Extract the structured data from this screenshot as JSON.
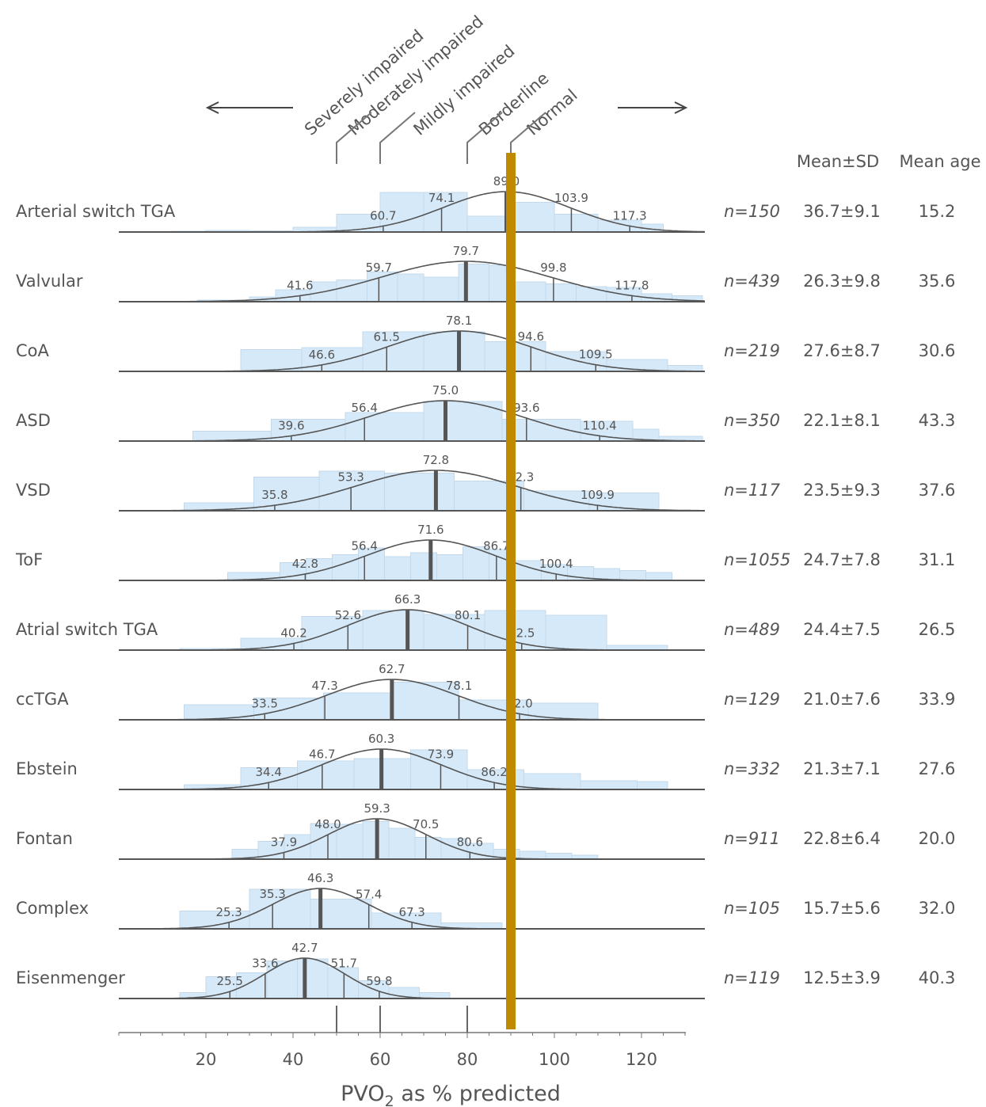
{
  "chart_data": {
    "type": "bar",
    "subtype": "histogram-with-normal-fit",
    "xlabel": "PVO",
    "xlabel_sub": "2",
    "xlabel_rest": " as % predicted",
    "x_ticks": [
      "20",
      "40",
      "60",
      "80",
      "100",
      "120"
    ],
    "xlim": [
      0,
      130
    ],
    "category_labels": [
      "Severely impaired",
      "Moderately impaired",
      "Mildly impaired",
      "Borderline",
      "Normal"
    ],
    "category_thresholds": [
      50,
      60,
      80,
      90
    ],
    "reference_line": {
      "x": 90,
      "color": "#c08a00"
    },
    "bar_color": "#d6e9f8",
    "curve_color": "#555555",
    "column_headers": {
      "mean_sd": "Mean±SD",
      "mean_age": "Mean age"
    },
    "series": [
      {
        "name": "Arterial switch TGA",
        "n": "n=150",
        "mean_sd": "36.7±9.1",
        "mean_age": "15.2",
        "mean": 89.0,
        "sd": 14.5,
        "markers": [
          {
            "v": 60.7,
            "t": "60.7"
          },
          {
            "v": 74.1,
            "t": "74.1"
          },
          {
            "v": 89.0,
            "t": "89.0",
            "mean": true
          },
          {
            "v": 103.9,
            "t": "103.9"
          },
          {
            "v": 117.3,
            "t": "117.3"
          }
        ],
        "bins": [
          [
            12,
            20,
            0.02
          ],
          [
            20,
            30,
            0.04
          ],
          [
            30,
            40,
            0.03
          ],
          [
            40,
            50,
            0.12
          ],
          [
            50,
            60,
            0.45
          ],
          [
            60,
            70,
            1.0
          ],
          [
            70,
            80,
            1.0
          ],
          [
            80,
            90,
            0.4
          ],
          [
            90,
            100,
            0.75
          ],
          [
            100,
            110,
            0.45
          ],
          [
            110,
            120,
            0.3
          ],
          [
            120,
            125,
            0.2
          ]
        ]
      },
      {
        "name": "Valvular",
        "n": "n=439",
        "mean_sd": "26.3±9.8",
        "mean_age": "35.6",
        "mean": 79.7,
        "sd": 19.5,
        "markers": [
          {
            "v": 41.6,
            "t": "41.6"
          },
          {
            "v": 59.7,
            "t": "59.7"
          },
          {
            "v": 79.7,
            "t": "79.7",
            "mean": true
          },
          {
            "v": 99.8,
            "t": "99.8"
          },
          {
            "v": 117.8,
            "t": "117.8"
          }
        ],
        "bins": [
          [
            18,
            30,
            0.04
          ],
          [
            30,
            36,
            0.12
          ],
          [
            36,
            44,
            0.3
          ],
          [
            44,
            50,
            0.5
          ],
          [
            50,
            57,
            0.55
          ],
          [
            57,
            64,
            0.75
          ],
          [
            64,
            70,
            0.7
          ],
          [
            70,
            78,
            0.62
          ],
          [
            78,
            85,
            0.95
          ],
          [
            85,
            91,
            0.92
          ],
          [
            91,
            98,
            0.5
          ],
          [
            98,
            105,
            0.45
          ],
          [
            105,
            112,
            0.38
          ],
          [
            112,
            120,
            0.36
          ],
          [
            120,
            127,
            0.2
          ],
          [
            127,
            134,
            0.15
          ]
        ]
      },
      {
        "name": "CoA",
        "n": "n=219",
        "mean_sd": "27.6±8.7",
        "mean_age": "30.6",
        "mean": 78.1,
        "sd": 16.5,
        "markers": [
          {
            "v": 46.6,
            "t": "46.6"
          },
          {
            "v": 61.5,
            "t": "61.5"
          },
          {
            "v": 78.1,
            "t": "78.1",
            "mean": true
          },
          {
            "v": 94.6,
            "t": "94.6"
          },
          {
            "v": 109.5,
            "t": "109.5"
          }
        ],
        "bins": [
          [
            28,
            42,
            0.55
          ],
          [
            42,
            56,
            0.6
          ],
          [
            56,
            70,
            1.0
          ],
          [
            70,
            84,
            1.0
          ],
          [
            84,
            98,
            0.75
          ],
          [
            98,
            112,
            0.5
          ],
          [
            112,
            126,
            0.3
          ],
          [
            126,
            134,
            0.15
          ]
        ]
      },
      {
        "name": "ASD",
        "n": "n=350",
        "mean_sd": "22.1±8.1",
        "mean_age": "43.3",
        "mean": 75.0,
        "sd": 17.5,
        "markers": [
          {
            "v": 39.6,
            "t": "39.6"
          },
          {
            "v": 56.4,
            "t": "56.4"
          },
          {
            "v": 75.0,
            "t": "75.0",
            "mean": true
          },
          {
            "v": 93.6,
            "t": "93.6"
          },
          {
            "v": 110.4,
            "t": "110.4"
          }
        ],
        "bins": [
          [
            17,
            35,
            0.25
          ],
          [
            35,
            52,
            0.55
          ],
          [
            52,
            70,
            0.72
          ],
          [
            70,
            88,
            1.0
          ],
          [
            88,
            106,
            0.55
          ],
          [
            106,
            118,
            0.5
          ],
          [
            118,
            124,
            0.3
          ],
          [
            124,
            134,
            0.12
          ]
        ]
      },
      {
        "name": "VSD",
        "n": "n=117",
        "mean_sd": "23.5±9.3",
        "mean_age": "37.6",
        "mean": 72.8,
        "sd": 18.5,
        "markers": [
          {
            "v": 35.8,
            "t": "35.8"
          },
          {
            "v": 53.3,
            "t": "53.3"
          },
          {
            "v": 72.8,
            "t": "72.8",
            "mean": true
          },
          {
            "v": 92.3,
            "t": "92.3"
          },
          {
            "v": 109.9,
            "t": "109.9"
          }
        ],
        "bins": [
          [
            15,
            31,
            0.2
          ],
          [
            31,
            46,
            0.85
          ],
          [
            46,
            61,
            1.0
          ],
          [
            61,
            77,
            0.95
          ],
          [
            77,
            93,
            0.75
          ],
          [
            93,
            108,
            0.5
          ],
          [
            108,
            124,
            0.45
          ]
        ]
      },
      {
        "name": "ToF",
        "n": "n=1055",
        "mean_sd": "24.7±7.8",
        "mean_age": "31.1",
        "mean": 71.6,
        "sd": 15.0,
        "markers": [
          {
            "v": 42.8,
            "t": "42.8"
          },
          {
            "v": 56.4,
            "t": "56.4"
          },
          {
            "v": 71.6,
            "t": "71.6",
            "mean": true
          },
          {
            "v": 86.7,
            "t": "86.7"
          },
          {
            "v": 100.4,
            "t": "100.4"
          }
        ],
        "bins": [
          [
            25,
            37,
            0.2
          ],
          [
            37,
            43,
            0.45
          ],
          [
            43,
            49,
            0.55
          ],
          [
            49,
            55,
            0.65
          ],
          [
            55,
            61,
            0.82
          ],
          [
            61,
            67,
            0.6
          ],
          [
            67,
            73,
            0.7
          ],
          [
            73,
            79,
            0.65
          ],
          [
            79,
            85,
            0.85
          ],
          [
            85,
            91,
            0.78
          ],
          [
            91,
            97,
            0.5
          ],
          [
            97,
            103,
            0.4
          ],
          [
            103,
            109,
            0.35
          ],
          [
            109,
            115,
            0.3
          ],
          [
            115,
            121,
            0.25
          ],
          [
            121,
            127,
            0.2
          ]
        ]
      },
      {
        "name": "Atrial switch TGA",
        "n": "n=489",
        "mean_sd": "24.4±7.5",
        "mean_age": "26.5",
        "mean": 66.3,
        "sd": 13.8,
        "markers": [
          {
            "v": 40.2,
            "t": "40.2"
          },
          {
            "v": 52.6,
            "t": "52.6"
          },
          {
            "v": 66.3,
            "t": "66.3",
            "mean": true
          },
          {
            "v": 80.1,
            "t": "80.1"
          },
          {
            "v": 92.5,
            "t": "92.5"
          }
        ],
        "bins": [
          [
            14,
            28,
            0.04
          ],
          [
            28,
            42,
            0.3
          ],
          [
            42,
            56,
            0.85
          ],
          [
            56,
            70,
            1.0
          ],
          [
            70,
            84,
            0.9
          ],
          [
            84,
            98,
            1.0
          ],
          [
            98,
            112,
            0.88
          ],
          [
            112,
            126,
            0.12
          ]
        ]
      },
      {
        "name": "ccTGA",
        "n": "n=129",
        "mean_sd": "21.0±7.6",
        "mean_age": "33.9",
        "mean": 62.7,
        "sd": 15.0,
        "markers": [
          {
            "v": 33.5,
            "t": "33.5"
          },
          {
            "v": 47.3,
            "t": "47.3"
          },
          {
            "v": 62.7,
            "t": "62.7",
            "mean": true
          },
          {
            "v": 78.1,
            "t": "78.1"
          },
          {
            "v": 92.0,
            "t": "92.0"
          }
        ],
        "bins": [
          [
            15,
            31,
            0.38
          ],
          [
            31,
            47,
            0.55
          ],
          [
            47,
            63,
            0.68
          ],
          [
            63,
            78,
            0.95
          ],
          [
            78,
            94,
            0.5
          ],
          [
            94,
            110,
            0.42
          ]
        ]
      },
      {
        "name": "Ebstein",
        "n": "n=332",
        "mean_sd": "21.3±7.1",
        "mean_age": "27.6",
        "mean": 60.3,
        "sd": 13.8,
        "markers": [
          {
            "v": 34.4,
            "t": "34.4"
          },
          {
            "v": 46.7,
            "t": "46.7"
          },
          {
            "v": 60.3,
            "t": "60.3",
            "mean": true
          },
          {
            "v": 73.9,
            "t": "73.9"
          },
          {
            "v": 86.2,
            "t": "86.2"
          }
        ],
        "bins": [
          [
            15,
            28,
            0.12
          ],
          [
            28,
            41,
            0.55
          ],
          [
            41,
            54,
            0.72
          ],
          [
            54,
            67,
            0.78
          ],
          [
            67,
            80,
            1.0
          ],
          [
            80,
            93,
            0.5
          ],
          [
            93,
            106,
            0.4
          ],
          [
            106,
            119,
            0.22
          ],
          [
            119,
            126,
            0.2
          ]
        ]
      },
      {
        "name": "Fontan",
        "n": "n=911",
        "mean_sd": "22.8±6.4",
        "mean_age": "20.0",
        "mean": 59.3,
        "sd": 11.3,
        "markers": [
          {
            "v": 37.9,
            "t": "37.9"
          },
          {
            "v": 48.0,
            "t": "48.0"
          },
          {
            "v": 59.3,
            "t": "59.3",
            "mean": true
          },
          {
            "v": 70.5,
            "t": "70.5"
          },
          {
            "v": 80.6,
            "t": "80.6"
          }
        ],
        "bins": [
          [
            26,
            32,
            0.25
          ],
          [
            32,
            38,
            0.45
          ],
          [
            38,
            44,
            0.62
          ],
          [
            44,
            50,
            0.9
          ],
          [
            50,
            56,
            0.88
          ],
          [
            56,
            62,
            0.95
          ],
          [
            62,
            68,
            0.78
          ],
          [
            68,
            74,
            0.55
          ],
          [
            74,
            80,
            0.52
          ],
          [
            80,
            86,
            0.4
          ],
          [
            86,
            92,
            0.25
          ],
          [
            92,
            98,
            0.2
          ],
          [
            98,
            104,
            0.15
          ],
          [
            104,
            110,
            0.1
          ]
        ]
      },
      {
        "name": "Complex",
        "n": "n=105",
        "mean_sd": "15.7±5.6",
        "mean_age": "32.0",
        "mean": 46.3,
        "sd": 11.0,
        "markers": [
          {
            "v": 25.3,
            "t": "25.3"
          },
          {
            "v": 35.3,
            "t": "35.3"
          },
          {
            "v": 46.3,
            "t": "46.3",
            "mean": true
          },
          {
            "v": 57.4,
            "t": "57.4"
          },
          {
            "v": 67.3,
            "t": "67.3"
          }
        ],
        "bins": [
          [
            14,
            30,
            0.45
          ],
          [
            30,
            44,
            1.0
          ],
          [
            44,
            58,
            0.75
          ],
          [
            58,
            74,
            0.4
          ],
          [
            74,
            88,
            0.15
          ]
        ]
      },
      {
        "name": "Eisenmenger",
        "n": "n=119",
        "mean_sd": "12.5±3.9",
        "mean_age": "40.3",
        "mean": 42.7,
        "sd": 9.2,
        "markers": [
          {
            "v": 25.5,
            "t": "25.5"
          },
          {
            "v": 33.6,
            "t": "33.6"
          },
          {
            "v": 42.7,
            "t": "42.7",
            "mean": true
          },
          {
            "v": 51.7,
            "t": "51.7"
          },
          {
            "v": 59.8,
            "t": "59.8"
          }
        ],
        "bins": [
          [
            14,
            20,
            0.15
          ],
          [
            20,
            27,
            0.55
          ],
          [
            27,
            34,
            0.65
          ],
          [
            34,
            41,
            0.95
          ],
          [
            41,
            48,
            1.0
          ],
          [
            48,
            55,
            0.78
          ],
          [
            55,
            62,
            0.45
          ],
          [
            62,
            69,
            0.28
          ],
          [
            69,
            76,
            0.15
          ]
        ]
      }
    ]
  }
}
